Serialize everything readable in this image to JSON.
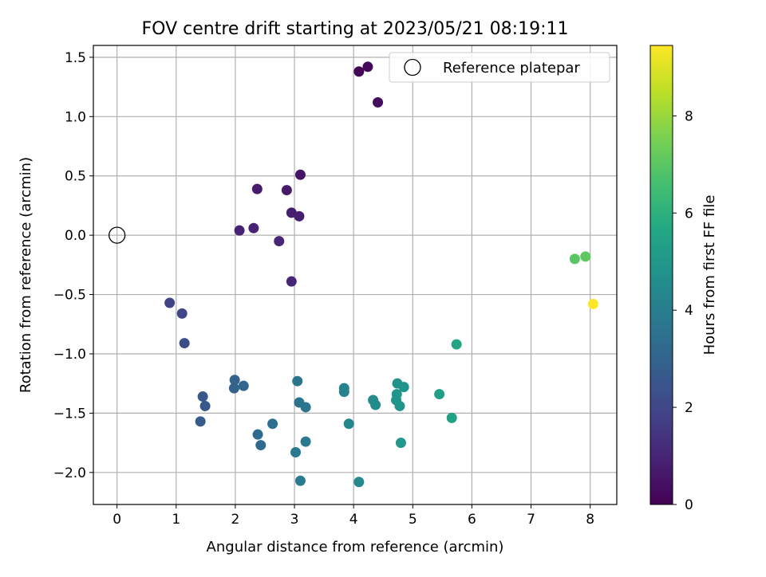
{
  "chart_data": {
    "type": "scatter",
    "title": "FOV centre drift starting at 2023/05/21 08:19:11",
    "xlabel": "Angular distance from reference (arcmin)",
    "ylabel": "Rotation from reference (arcmin)",
    "xlim": [
      -0.4,
      8.45
    ],
    "ylim": [
      -2.27,
      1.6
    ],
    "xticks": [
      0,
      1,
      2,
      3,
      4,
      5,
      6,
      7,
      8
    ],
    "yticks": [
      1.5,
      1.0,
      0.5,
      0.0,
      -0.5,
      -1.0,
      -1.5,
      -2.0
    ],
    "xtick_labels": [
      "0",
      "1",
      "2",
      "3",
      "4",
      "5",
      "6",
      "7",
      "8"
    ],
    "ytick_labels": [
      "1.5",
      "1.0",
      "0.5",
      "0.0",
      "−0.5",
      "−1.0",
      "−1.5",
      "−2.0"
    ],
    "grid": true,
    "legend": {
      "label": "Reference platepar",
      "placement": "top-right"
    },
    "reference_point": {
      "x": 0,
      "y": 0
    },
    "colorbar": {
      "label": "Hours from first FF file",
      "range": [
        0,
        9.45
      ],
      "ticks": [
        0,
        2,
        4,
        6,
        8
      ],
      "tick_labels": [
        "0",
        "2",
        "4",
        "6",
        "8"
      ],
      "colormap": "viridis"
    },
    "points": [
      {
        "x": 4.09,
        "y": 1.38,
        "c": 0.1
      },
      {
        "x": 4.24,
        "y": 1.42,
        "c": 0.2
      },
      {
        "x": 4.41,
        "y": 1.12,
        "c": 0.3
      },
      {
        "x": 3.1,
        "y": 0.51,
        "c": 0.5
      },
      {
        "x": 2.37,
        "y": 0.39,
        "c": 0.7
      },
      {
        "x": 2.87,
        "y": 0.38,
        "c": 0.7
      },
      {
        "x": 2.95,
        "y": 0.19,
        "c": 0.8
      },
      {
        "x": 3.08,
        "y": 0.16,
        "c": 0.8
      },
      {
        "x": 2.07,
        "y": 0.04,
        "c": 0.9
      },
      {
        "x": 2.31,
        "y": 0.06,
        "c": 0.9
      },
      {
        "x": 2.74,
        "y": -0.05,
        "c": 1.0
      },
      {
        "x": 2.95,
        "y": -0.39,
        "c": 1.0
      },
      {
        "x": 0.89,
        "y": -0.57,
        "c": 1.9
      },
      {
        "x": 1.1,
        "y": -0.66,
        "c": 2.0
      },
      {
        "x": 1.14,
        "y": -0.91,
        "c": 2.2
      },
      {
        "x": 1.45,
        "y": -1.36,
        "c": 2.6
      },
      {
        "x": 1.49,
        "y": -1.44,
        "c": 2.6
      },
      {
        "x": 1.41,
        "y": -1.57,
        "c": 2.7
      },
      {
        "x": 1.99,
        "y": -1.22,
        "c": 3.0
      },
      {
        "x": 1.98,
        "y": -1.29,
        "c": 3.0
      },
      {
        "x": 2.14,
        "y": -1.27,
        "c": 3.1
      },
      {
        "x": 2.38,
        "y": -1.68,
        "c": 3.3
      },
      {
        "x": 2.43,
        "y": -1.77,
        "c": 3.3
      },
      {
        "x": 2.63,
        "y": -1.59,
        "c": 3.4
      },
      {
        "x": 3.05,
        "y": -1.23,
        "c": 3.6
      },
      {
        "x": 3.08,
        "y": -1.41,
        "c": 3.6
      },
      {
        "x": 3.19,
        "y": -1.45,
        "c": 3.7
      },
      {
        "x": 3.02,
        "y": -1.83,
        "c": 3.8
      },
      {
        "x": 3.19,
        "y": -1.74,
        "c": 3.8
      },
      {
        "x": 3.1,
        "y": -2.07,
        "c": 3.9
      },
      {
        "x": 3.84,
        "y": -1.29,
        "c": 4.2
      },
      {
        "x": 3.84,
        "y": -1.32,
        "c": 4.2
      },
      {
        "x": 3.92,
        "y": -1.59,
        "c": 4.3
      },
      {
        "x": 4.09,
        "y": -2.08,
        "c": 4.4
      },
      {
        "x": 4.33,
        "y": -1.39,
        "c": 4.5
      },
      {
        "x": 4.37,
        "y": -1.43,
        "c": 4.5
      },
      {
        "x": 4.74,
        "y": -1.25,
        "c": 4.8
      },
      {
        "x": 4.85,
        "y": -1.28,
        "c": 4.8
      },
      {
        "x": 4.73,
        "y": -1.34,
        "c": 4.9
      },
      {
        "x": 4.72,
        "y": -1.39,
        "c": 4.9
      },
      {
        "x": 4.78,
        "y": -1.44,
        "c": 4.9
      },
      {
        "x": 4.8,
        "y": -1.75,
        "c": 5.0
      },
      {
        "x": 5.45,
        "y": -1.34,
        "c": 5.3
      },
      {
        "x": 5.66,
        "y": -1.54,
        "c": 5.4
      },
      {
        "x": 5.74,
        "y": -0.92,
        "c": 5.5
      },
      {
        "x": 7.74,
        "y": -0.2,
        "c": 7.0
      },
      {
        "x": 7.92,
        "y": -0.18,
        "c": 7.1
      },
      {
        "x": 8.05,
        "y": -0.58,
        "c": 9.45
      }
    ]
  }
}
